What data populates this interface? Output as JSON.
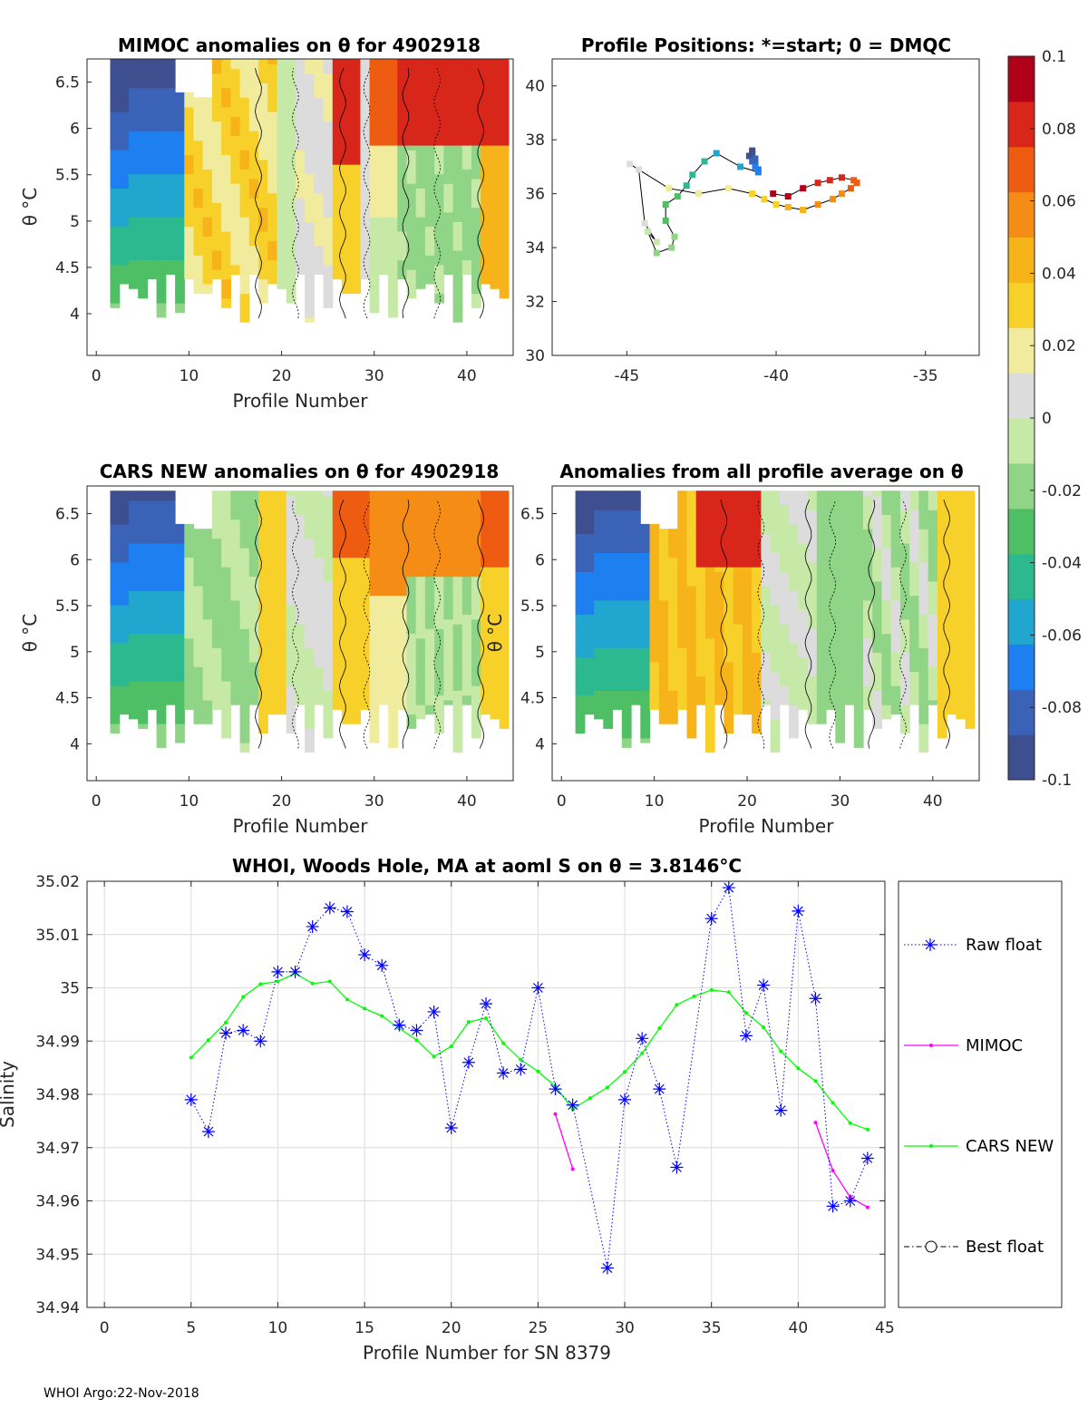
{
  "colors": {
    "raw": "#0000ff",
    "mimoc": "#ff00ff",
    "cars": "#00ff00",
    "best": "#000000",
    "colormap": [
      "#3e4f8f",
      "#3a62b6",
      "#1e7ff0",
      "#21a6cf",
      "#2cb98f",
      "#4fbf65",
      "#8fd487",
      "#c7e9a7",
      "#dcdcdc",
      "#f1eb9d",
      "#f7d12a",
      "#f6b31a",
      "#f58c16",
      "#ee5c11",
      "#d9261a",
      "#b0001a"
    ]
  },
  "panels": {
    "p1": {
      "title": "MIMOC anomalies on θ  for 4902918",
      "xlabel": "Profile Number",
      "ylabel": "θ °C",
      "xticks": [
        "0",
        "10",
        "20",
        "30",
        "40"
      ],
      "yticks": [
        "4",
        "4.5",
        "5",
        "5.5",
        "6",
        "6.5"
      ],
      "xlim": [
        -1,
        45
      ],
      "ylim": [
        3.55,
        6.75
      ]
    },
    "p2": {
      "title": "Profile Positions: *=start; 0 = DMQC",
      "xticks": [
        "-45",
        "-40",
        "-35"
      ],
      "yticks": [
        "30",
        "32",
        "34",
        "36",
        "38",
        "40"
      ],
      "xlim": [
        -47.5,
        -33.2
      ],
      "ylim": [
        30,
        41
      ]
    },
    "p3": {
      "title": "CARS NEW anomalies on θ for 4902918",
      "xlabel": "Profile Number",
      "ylabel": "θ °C",
      "xticks": [
        "0",
        "10",
        "20",
        "30",
        "40"
      ],
      "yticks": [
        "4",
        "4.5",
        "5",
        "5.5",
        "6",
        "6.5"
      ],
      "xlim": [
        -1,
        45
      ],
      "ylim": [
        3.6,
        6.8
      ]
    },
    "p4": {
      "title": "Anomalies from all profile average on θ",
      "xlabel": "Profile Number",
      "ylabel": "θ °C",
      "xticks": [
        "0",
        "10",
        "20",
        "30",
        "40"
      ],
      "yticks": [
        "4",
        "4.5",
        "5",
        "5.5",
        "6",
        "6.5"
      ],
      "xlim": [
        -1,
        45
      ],
      "ylim": [
        3.6,
        6.8
      ]
    },
    "colorbar": {
      "ticks": [
        "0.1",
        "0.08",
        "0.06",
        "0.04",
        "0.02",
        "0",
        "-0.02",
        "-0.04",
        "-0.06",
        "-0.08",
        "-0.1"
      ],
      "range": [
        -0.1,
        0.1
      ]
    }
  },
  "chart_data": [
    {
      "type": "heatmap",
      "title": "MIMOC anomalies on θ  for 4902918",
      "xlabel": "Profile Number",
      "ylabel": "θ °C",
      "xlim": [
        -1,
        45
      ],
      "ylim": [
        3.55,
        6.75
      ],
      "clim": [
        -0.1,
        0.1
      ]
    },
    {
      "type": "scatter",
      "title": "Profile Positions: *=start; 0 = DMQC",
      "xlim": [
        -47.5,
        -33.2
      ],
      "ylim": [
        30,
        41
      ],
      "lon": [
        -40.8,
        -40.8,
        -40.9,
        -40.7,
        -40.8,
        -40.7,
        -40.7,
        -40.6,
        -40.6,
        -41.2,
        -42.0,
        -42.4,
        -42.8,
        -43.0,
        -43.3,
        -43.7,
        -43.7,
        -43.4,
        -43.5,
        -44.0,
        -44.3,
        -44.0,
        -44.4,
        -44.6,
        -44.9,
        -43.6,
        -42.6,
        -41.6,
        -40.8,
        -40.4,
        -40.0,
        -39.6,
        -39.1,
        -38.6,
        -38.1,
        -37.8,
        -37.5,
        -37.3,
        -37.4,
        -37.8,
        -38.2,
        -38.6,
        -39.1,
        -39.6,
        -40.1
      ],
      "lat": [
        37.6,
        37.5,
        37.4,
        37.3,
        37.2,
        37.1,
        37.0,
        36.9,
        36.8,
        37.0,
        37.5,
        37.2,
        36.7,
        36.3,
        35.9,
        35.6,
        35.0,
        34.4,
        34.0,
        33.8,
        34.6,
        34.2,
        34.9,
        36.9,
        37.1,
        36.2,
        36.0,
        36.2,
        36.0,
        35.8,
        35.6,
        35.5,
        35.4,
        35.6,
        35.8,
        36.0,
        36.2,
        36.4,
        36.5,
        36.6,
        36.5,
        36.4,
        36.2,
        35.9,
        36.0
      ],
      "series": [
        {
          "name": "profile positions",
          "color_by": "profile number"
        }
      ]
    },
    {
      "type": "heatmap",
      "title": "CARS NEW anomalies on θ for 4902918",
      "xlabel": "Profile Number",
      "ylabel": "θ °C",
      "xlim": [
        -1,
        45
      ],
      "ylim": [
        3.6,
        6.8
      ],
      "clim": [
        -0.1,
        0.1
      ]
    },
    {
      "type": "heatmap",
      "title": "Anomalies from all profile average on θ",
      "xlabel": "Profile Number",
      "ylabel": "θ °C",
      "xlim": [
        -1,
        45
      ],
      "ylim": [
        3.6,
        6.8
      ],
      "clim": [
        -0.1,
        0.1
      ]
    },
    {
      "type": "line",
      "title": "WHOI, Woods Hole, MA at aoml S on θ = 3.8146°C",
      "xlabel": "Profile Number for SN 8379",
      "ylabel": "Salinity",
      "xlim": [
        -1,
        45
      ],
      "ylim": [
        34.94,
        35.02
      ],
      "xticks": [
        "0",
        "5",
        "10",
        "15",
        "20",
        "25",
        "30",
        "35",
        "40",
        "45"
      ],
      "yticks": [
        "34.94",
        "34.95",
        "34.96",
        "34.97",
        "34.98",
        "34.99",
        "35",
        "35.01",
        "35.02"
      ],
      "legend": [
        "Raw float",
        "MIMOC",
        "CARS NEW",
        "Best float"
      ],
      "legend_position": "outside-right",
      "series": [
        {
          "name": "Raw float",
          "x": [
            5,
            6,
            7,
            8,
            9,
            10,
            11,
            12,
            13,
            14,
            15,
            16,
            17,
            18,
            19,
            20,
            21,
            22,
            23,
            24,
            25,
            26,
            27,
            29,
            30,
            31,
            32,
            33,
            35,
            36,
            37,
            38,
            39,
            40,
            41,
            42,
            43,
            44
          ],
          "y": [
            34.979,
            34.973,
            34.9915,
            34.992,
            34.99,
            35.003,
            35.003,
            35.0115,
            35.015,
            35.0143,
            35.0062,
            35.0042,
            34.993,
            34.992,
            34.9955,
            34.9737,
            34.986,
            34.997,
            34.984,
            34.9847,
            35.0,
            34.981,
            34.978,
            34.9474,
            34.979,
            34.9905,
            34.981,
            34.9663,
            35.013,
            35.0188,
            34.991,
            35.0005,
            34.977,
            35.0144,
            34.998,
            34.959,
            34.96,
            34.968
          ]
        },
        {
          "name": "MIMOC",
          "segments": [
            {
              "x": [
                26,
                27
              ],
              "y": [
                34.9763,
                34.966
              ]
            },
            {
              "x": [
                41,
                42,
                43,
                44
              ],
              "y": [
                34.9747,
                34.9657,
                34.9607,
                34.9588
              ]
            }
          ]
        },
        {
          "name": "CARS NEW",
          "x": [
            5,
            6,
            7,
            8,
            9,
            10,
            11,
            12,
            13,
            14,
            15,
            16,
            17,
            18,
            19,
            20,
            21,
            22,
            23,
            24,
            25,
            26,
            27,
            28,
            29,
            30,
            31,
            32,
            33,
            34,
            35,
            36,
            37,
            38,
            39,
            40,
            41,
            42,
            43,
            44
          ],
          "y": [
            34.9869,
            34.9902,
            34.9935,
            34.9983,
            35.0007,
            35.0012,
            35.0027,
            35.0008,
            35.0012,
            34.9978,
            34.9961,
            34.9947,
            34.9924,
            34.9902,
            34.9871,
            34.989,
            34.9936,
            34.9943,
            34.9896,
            34.9865,
            34.9843,
            34.9815,
            34.9772,
            34.9793,
            34.9813,
            34.9842,
            34.9877,
            34.9924,
            34.9968,
            34.9984,
            34.9996,
            34.9992,
            34.9953,
            34.9926,
            34.9881,
            34.9849,
            34.9825,
            34.9784,
            34.9746,
            34.9734
          ]
        },
        {
          "name": "Best float",
          "x": [],
          "y": []
        }
      ]
    }
  ],
  "footer": "WHOI Argo:22-Nov-2018"
}
